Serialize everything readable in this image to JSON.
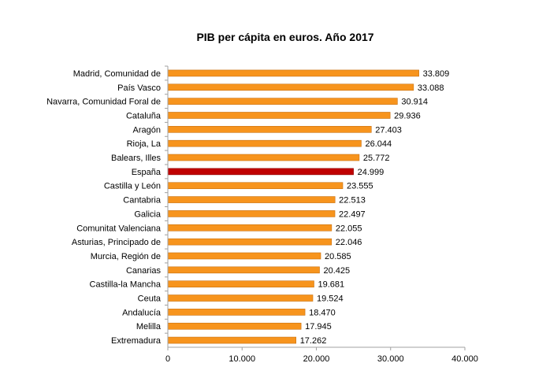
{
  "chart_data": {
    "type": "bar",
    "orientation": "horizontal",
    "title": "PIB per cápita en euros. Año 2017",
    "xlabel": "",
    "ylabel": "",
    "xlim": [
      0,
      40000
    ],
    "grid": false,
    "categories": [
      "Madrid, Comunidad de",
      "País Vasco",
      "Navarra, Comunidad Foral de",
      "Cataluña",
      "Aragón",
      "Rioja, La",
      "Balears, Illes",
      "España",
      "Castilla y León",
      "Cantabria",
      "Galicia",
      "Comunitat Valenciana",
      "Asturias, Principado de",
      "Murcia, Región de",
      "Canarias",
      "Castilla-la Mancha",
      "Ceuta",
      "Andalucía",
      "Melilla",
      "Extremadura"
    ],
    "values": [
      33809,
      33088,
      30914,
      29936,
      27403,
      26044,
      25772,
      24999,
      23555,
      22513,
      22497,
      22055,
      22046,
      20585,
      20425,
      19681,
      19524,
      18470,
      17945,
      17262
    ],
    "value_labels": [
      "33.809",
      "33.088",
      "30.914",
      "29.936",
      "27.403",
      "26.044",
      "25.772",
      "24.999",
      "23.555",
      "22.513",
      "22.497",
      "22.055",
      "22.046",
      "20.585",
      "20.425",
      "19.681",
      "19.524",
      "18.470",
      "17.945",
      "17.262"
    ],
    "x_ticks": [
      0,
      10000,
      20000,
      30000,
      40000
    ],
    "x_tick_labels": [
      "0",
      "10.000",
      "20.000",
      "30.000",
      "40.000"
    ],
    "highlight": "España",
    "colors": {
      "bar": "#F7941D",
      "bar_border": "#C87010",
      "highlight": "#C00000",
      "highlight_border": "#8B0000",
      "axis": "#A0A0A0"
    }
  }
}
